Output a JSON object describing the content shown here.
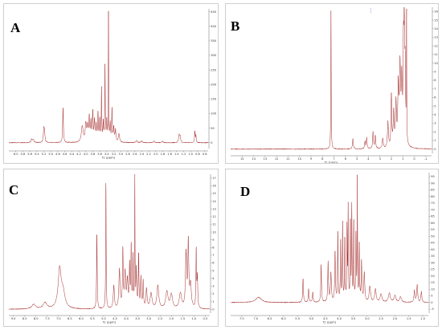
{
  "colors": {
    "trace": "#a52a2a",
    "axis": "#444444",
    "frame": "#cfcfcf",
    "marker": "#4a5fd0"
  },
  "chart_data": [
    {
      "type": "line",
      "label": "A",
      "xlabel": "f1 (ppm)",
      "xlim": [
        6.2,
        0.5
      ],
      "x_ticks": [
        "6.0",
        "5.8",
        "5.6",
        "5.4",
        "5.2",
        "5.0",
        "4.8",
        "4.6",
        "4.4",
        "4.2",
        "4.0",
        "3.8",
        "3.6",
        "3.4",
        "3.2",
        "3.0",
        "2.8",
        "2.6",
        "2.4",
        "2.2",
        "2.0",
        "1.8",
        "1.6",
        "1.4",
        "1.2",
        "1.0",
        "0.8",
        "0.6"
      ],
      "y_ticks": [
        "0",
        "50",
        "100",
        "150",
        "200",
        "250",
        "300",
        "350",
        "400",
        "450"
      ],
      "ylim": [
        -20,
        460
      ],
      "peaks": [
        {
          "x": 5.55,
          "h": 12,
          "w": 0.02
        },
        {
          "x": 5.5,
          "h": 10,
          "w": 0.02
        },
        {
          "x": 5.2,
          "h": 45,
          "w": 0.015
        },
        {
          "x": 5.18,
          "h": 30,
          "w": 0.015
        },
        {
          "x": 4.65,
          "h": 120,
          "w": 0.012
        },
        {
          "x": 4.1,
          "h": 55,
          "w": 0.03
        },
        {
          "x": 4.0,
          "h": 60,
          "w": 0.02
        },
        {
          "x": 3.95,
          "h": 50,
          "w": 0.02
        },
        {
          "x": 3.9,
          "h": 80,
          "w": 0.015
        },
        {
          "x": 3.85,
          "h": 65,
          "w": 0.015
        },
        {
          "x": 3.8,
          "h": 100,
          "w": 0.012
        },
        {
          "x": 3.75,
          "h": 70,
          "w": 0.015
        },
        {
          "x": 3.7,
          "h": 55,
          "w": 0.015
        },
        {
          "x": 3.65,
          "h": 95,
          "w": 0.012
        },
        {
          "x": 3.6,
          "h": 75,
          "w": 0.012
        },
        {
          "x": 3.55,
          "h": 180,
          "w": 0.008
        },
        {
          "x": 3.5,
          "h": 65,
          "w": 0.012
        },
        {
          "x": 3.45,
          "h": 270,
          "w": 0.008
        },
        {
          "x": 3.4,
          "h": 70,
          "w": 0.012
        },
        {
          "x": 3.35,
          "h": 440,
          "w": 0.006
        },
        {
          "x": 3.3,
          "h": 60,
          "w": 0.012
        },
        {
          "x": 3.25,
          "h": 115,
          "w": 0.01
        },
        {
          "x": 3.2,
          "h": 50,
          "w": 0.015
        },
        {
          "x": 3.15,
          "h": 40,
          "w": 0.015
        },
        {
          "x": 3.05,
          "h": 30,
          "w": 0.02
        },
        {
          "x": 2.55,
          "h": 8,
          "w": 0.02
        },
        {
          "x": 2.4,
          "h": 6,
          "w": 0.02
        },
        {
          "x": 2.05,
          "h": 6,
          "w": 0.02
        },
        {
          "x": 1.8,
          "h": 5,
          "w": 0.02
        },
        {
          "x": 1.33,
          "h": 28,
          "w": 0.015
        },
        {
          "x": 1.3,
          "h": 20,
          "w": 0.015
        },
        {
          "x": 0.88,
          "h": 40,
          "w": 0.01
        },
        {
          "x": 0.85,
          "h": 25,
          "w": 0.01
        }
      ]
    },
    {
      "type": "line",
      "label": "B",
      "xlabel": "f1 (ppm)",
      "xlim": [
        16,
        -1.5
      ],
      "x_ticks": [
        "15",
        "14",
        "13",
        "12",
        "11",
        "10",
        "9",
        "8",
        "7",
        "6",
        "5",
        "4",
        "3",
        "2",
        "1",
        "0",
        "-1"
      ],
      "y_ticks": [
        "0",
        "1",
        "2",
        "3",
        "4",
        "5",
        "6",
        "7",
        "8",
        "9",
        "10",
        "11",
        "12",
        "13",
        "14",
        "15",
        "16"
      ],
      "ylim": [
        -0.5,
        16.5
      ],
      "peaks": [
        {
          "x": 7.26,
          "h": 16.3,
          "w": 0.02
        },
        {
          "x": 5.35,
          "h": 1.2,
          "w": 0.04
        },
        {
          "x": 4.3,
          "h": 0.8,
          "w": 0.04
        },
        {
          "x": 4.15,
          "h": 1.3,
          "w": 0.04
        },
        {
          "x": 3.6,
          "h": 2.0,
          "w": 0.04
        },
        {
          "x": 3.4,
          "h": 1.5,
          "w": 0.04
        },
        {
          "x": 2.75,
          "h": 1.2,
          "w": 0.05
        },
        {
          "x": 2.3,
          "h": 3.0,
          "w": 0.05
        },
        {
          "x": 2.0,
          "h": 6.0,
          "w": 0.04
        },
        {
          "x": 1.8,
          "h": 4.0,
          "w": 0.05
        },
        {
          "x": 1.6,
          "h": 5.0,
          "w": 0.05
        },
        {
          "x": 1.4,
          "h": 6.5,
          "w": 0.05
        },
        {
          "x": 1.25,
          "h": 9.0,
          "w": 0.06
        },
        {
          "x": 1.1,
          "h": 7.0,
          "w": 0.05
        },
        {
          "x": 0.95,
          "h": 10.0,
          "w": 0.04
        },
        {
          "x": 0.88,
          "h": 12.5,
          "w": 0.04
        },
        {
          "x": 0.8,
          "h": 8.0,
          "w": 0.04
        },
        {
          "x": 0.68,
          "h": 16.3,
          "w": 0.015
        }
      ]
    },
    {
      "type": "line",
      "label": "C",
      "xlabel": "f1 (ppm)",
      "xlim": [
        9.2,
        0.3
      ],
      "x_ticks": [
        "9.0",
        "8.5",
        "8.0",
        "7.5",
        "7.0",
        "6.5",
        "6.0",
        "5.5",
        "5.0",
        "4.5",
        "4.0",
        "3.5",
        "3.0",
        "2.5",
        "2.0",
        "1.5",
        "1.0",
        "0.5"
      ],
      "y_ticks": [
        "0",
        "1",
        "2",
        "3",
        "4",
        "5",
        "6",
        "7",
        "8",
        "9",
        "10",
        "11",
        "12",
        "13",
        "14",
        "15",
        "16",
        "17"
      ],
      "ylim": [
        -0.5,
        17.5
      ],
      "peaks": [
        {
          "x": 8.1,
          "h": 0.6,
          "w": 0.1
        },
        {
          "x": 7.6,
          "h": 0.8,
          "w": 0.1
        },
        {
          "x": 6.95,
          "h": 5.0,
          "w": 0.08
        },
        {
          "x": 6.8,
          "h": 2.0,
          "w": 0.1
        },
        {
          "x": 5.3,
          "h": 10.0,
          "w": 0.015
        },
        {
          "x": 4.9,
          "h": 17.0,
          "w": 0.012
        },
        {
          "x": 4.55,
          "h": 3.0,
          "w": 0.03
        },
        {
          "x": 4.3,
          "h": 5.0,
          "w": 0.03
        },
        {
          "x": 4.15,
          "h": 7.5,
          "w": 0.02
        },
        {
          "x": 4.05,
          "h": 4.5,
          "w": 0.03
        },
        {
          "x": 3.95,
          "h": 3.5,
          "w": 0.03
        },
        {
          "x": 3.85,
          "h": 5.5,
          "w": 0.02
        },
        {
          "x": 3.78,
          "h": 8.0,
          "w": 0.015
        },
        {
          "x": 3.7,
          "h": 6.5,
          "w": 0.015
        },
        {
          "x": 3.62,
          "h": 17.0,
          "w": 0.01
        },
        {
          "x": 3.55,
          "h": 5.0,
          "w": 0.02
        },
        {
          "x": 3.45,
          "h": 7.0,
          "w": 0.015
        },
        {
          "x": 3.35,
          "h": 4.0,
          "w": 0.02
        },
        {
          "x": 3.25,
          "h": 3.5,
          "w": 0.02
        },
        {
          "x": 3.1,
          "h": 2.5,
          "w": 0.03
        },
        {
          "x": 2.9,
          "h": 2.0,
          "w": 0.05
        },
        {
          "x": 2.6,
          "h": 3.0,
          "w": 0.05
        },
        {
          "x": 2.2,
          "h": 2.2,
          "w": 0.06
        },
        {
          "x": 2.0,
          "h": 1.8,
          "w": 0.06
        },
        {
          "x": 1.6,
          "h": 2.0,
          "w": 0.06
        },
        {
          "x": 1.35,
          "h": 7.0,
          "w": 0.03
        },
        {
          "x": 1.25,
          "h": 8.5,
          "w": 0.025
        },
        {
          "x": 1.15,
          "h": 3.0,
          "w": 0.04
        },
        {
          "x": 0.9,
          "h": 7.5,
          "w": 0.015
        },
        {
          "x": 0.85,
          "h": 4.0,
          "w": 0.02
        }
      ]
    },
    {
      "type": "line",
      "label": "D",
      "xlabel": "f1 (ppm)",
      "xlim": [
        7.9,
        0.8
      ],
      "x_ticks": [
        "7.5",
        "7.0",
        "6.5",
        "6.0",
        "5.5",
        "5.0",
        "4.5",
        "4.0",
        "3.5",
        "3.0",
        "2.5",
        "2.0",
        "1.5",
        "1.0"
      ],
      "y_ticks": [
        "-5",
        "0",
        "5",
        "10",
        "15",
        "20",
        "25",
        "30",
        "35",
        "40",
        "45",
        "50",
        "55",
        "60",
        "65",
        "70",
        "75",
        "80",
        "85",
        "90",
        "95"
      ],
      "ylim": [
        -8,
        98
      ],
      "peaks": [
        {
          "x": 6.9,
          "h": 4,
          "w": 0.12
        },
        {
          "x": 5.3,
          "h": 18,
          "w": 0.015
        },
        {
          "x": 5.1,
          "h": 10,
          "w": 0.015
        },
        {
          "x": 4.95,
          "h": 8,
          "w": 0.015
        },
        {
          "x": 4.65,
          "h": 28,
          "w": 0.015
        },
        {
          "x": 4.4,
          "h": 30,
          "w": 0.015
        },
        {
          "x": 4.3,
          "h": 22,
          "w": 0.02
        },
        {
          "x": 4.15,
          "h": 38,
          "w": 0.015
        },
        {
          "x": 4.05,
          "h": 52,
          "w": 0.012
        },
        {
          "x": 3.95,
          "h": 45,
          "w": 0.012
        },
        {
          "x": 3.88,
          "h": 60,
          "w": 0.01
        },
        {
          "x": 3.8,
          "h": 48,
          "w": 0.012
        },
        {
          "x": 3.72,
          "h": 55,
          "w": 0.01
        },
        {
          "x": 3.68,
          "h": 70,
          "w": 0.01
        },
        {
          "x": 3.6,
          "h": 58,
          "w": 0.01
        },
        {
          "x": 3.55,
          "h": 72,
          "w": 0.01
        },
        {
          "x": 3.48,
          "h": 62,
          "w": 0.01
        },
        {
          "x": 3.4,
          "h": 50,
          "w": 0.012
        },
        {
          "x": 3.35,
          "h": 92,
          "w": 0.008
        },
        {
          "x": 3.28,
          "h": 42,
          "w": 0.012
        },
        {
          "x": 3.2,
          "h": 30,
          "w": 0.015
        },
        {
          "x": 3.1,
          "h": 22,
          "w": 0.02
        },
        {
          "x": 2.9,
          "h": 12,
          "w": 0.03
        },
        {
          "x": 2.7,
          "h": 10,
          "w": 0.03
        },
        {
          "x": 2.5,
          "h": 6,
          "w": 0.04
        },
        {
          "x": 2.2,
          "h": 7,
          "w": 0.04
        },
        {
          "x": 2.0,
          "h": 5,
          "w": 0.04
        },
        {
          "x": 1.8,
          "h": 4,
          "w": 0.04
        },
        {
          "x": 1.3,
          "h": 9,
          "w": 0.02
        },
        {
          "x": 1.2,
          "h": 13,
          "w": 0.02
        },
        {
          "x": 1.05,
          "h": 8,
          "w": 0.02
        }
      ]
    }
  ]
}
